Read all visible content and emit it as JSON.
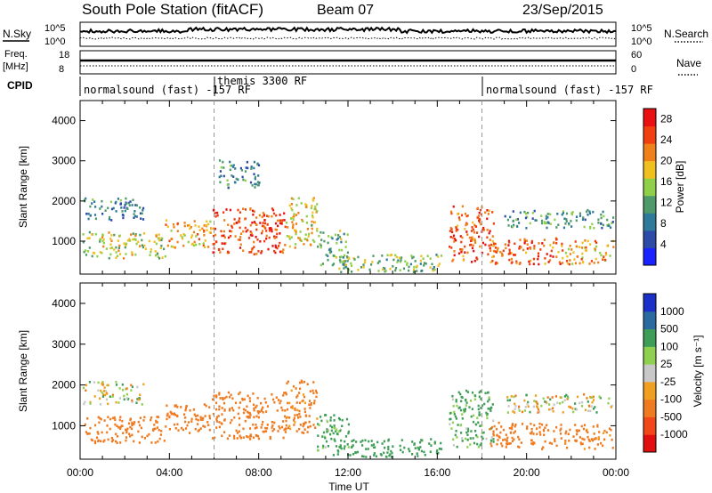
{
  "header": {
    "station": "South Pole Station (fitACF)",
    "beam": "Beam 07",
    "date": "23/Sep/2015"
  },
  "labels": {
    "nsky": "N.Sky",
    "nsearch": "N.Search",
    "freq_1": "Freq.",
    "freq_2": "[MHz]",
    "nave": "Nave",
    "cpid": "CPID",
    "nsky_top": "10^5",
    "nsky_bottom": "10^0",
    "nsearch_top": "10^5",
    "nsearch_bottom": "10^0",
    "freq_top": "18",
    "freq_bottom": "8",
    "nave_top": "60",
    "nave_bottom": "0"
  },
  "cpid_segments": [
    {
      "label": "normalsound (fast) -157 RF",
      "start_hour": 0
    },
    {
      "label": "themis 3300 RF",
      "start_hour": 6
    },
    {
      "label": "normalsound (fast) -157 RF",
      "start_hour": 18
    }
  ],
  "colors": {
    "power_scale": [
      "#1a22ff",
      "#2c4aa8",
      "#2f7a9a",
      "#4e9a6a",
      "#8fcf4a",
      "#f0c020",
      "#f08018",
      "#f04010",
      "#e81010"
    ],
    "velocity_scale": [
      "#e01010",
      "#f04818",
      "#f07a20",
      "#f0a020",
      "#c8c8c8",
      "#8fd050",
      "#3e9e58",
      "#2a6aa0",
      "#1a30c8"
    ]
  },
  "chart_data": [
    {
      "type": "heatmap",
      "name": "power",
      "xlabel": "Time UT",
      "ylabel": "Slant Range [km]",
      "xlim": [
        0,
        24
      ],
      "ylim": [
        180,
        4500
      ],
      "x_ticks": [
        "00:00",
        "04:00",
        "08:00",
        "12:00",
        "16:00",
        "20:00",
        "00:00"
      ],
      "y_ticks": [
        1000,
        2000,
        3000,
        4000
      ],
      "colorbar": {
        "label": "Power [dB]",
        "ticks": [
          4,
          8,
          12,
          16,
          20,
          24,
          28
        ],
        "range": [
          0,
          30
        ]
      },
      "regions": [
        {
          "t0": 0.1,
          "t1": 3.8,
          "r0": 600,
          "r1": 1250,
          "v": 16
        },
        {
          "t0": 3.8,
          "t1": 5.9,
          "r0": 850,
          "r1": 1550,
          "v": 20
        },
        {
          "t0": 0.1,
          "t1": 2.8,
          "r0": 1550,
          "r1": 2100,
          "v": 9
        },
        {
          "t0": 5.9,
          "t1": 9.2,
          "r0": 700,
          "r1": 1850,
          "v": 25
        },
        {
          "t0": 6.2,
          "t1": 8.0,
          "r0": 2350,
          "r1": 3050,
          "v": 9
        },
        {
          "t0": 9.2,
          "t1": 10.6,
          "r0": 850,
          "r1": 2150,
          "v": 18
        },
        {
          "t0": 10.6,
          "t1": 12.0,
          "r0": 400,
          "r1": 1300,
          "v": 12
        },
        {
          "t0": 11.2,
          "t1": 16.2,
          "r0": 250,
          "r1": 700,
          "v": 14
        },
        {
          "t0": 16.5,
          "t1": 18.5,
          "r0": 500,
          "r1": 1900,
          "v": 24
        },
        {
          "t0": 18.3,
          "t1": 21.5,
          "r0": 450,
          "r1": 1100,
          "v": 24
        },
        {
          "t0": 21.5,
          "t1": 23.9,
          "r0": 450,
          "r1": 1050,
          "v": 20
        },
        {
          "t0": 19.0,
          "t1": 23.9,
          "r0": 1350,
          "r1": 1800,
          "v": 11
        }
      ]
    },
    {
      "type": "heatmap",
      "name": "velocity",
      "xlabel": "Time UT",
      "ylabel": "Slant Range [km]",
      "xlim": [
        0,
        24
      ],
      "ylim": [
        180,
        4500
      ],
      "x_ticks": [
        "00:00",
        "04:00",
        "08:00",
        "12:00",
        "16:00",
        "20:00",
        "00:00"
      ],
      "y_ticks": [
        1000,
        2000,
        3000,
        4000
      ],
      "colorbar": {
        "label": "Velocity [m s⁻¹]",
        "ticks": [
          "-1000",
          "-500",
          "-100",
          "-25",
          "25",
          "100",
          "500",
          "1000"
        ]
      },
      "regions": [
        {
          "t0": 0.1,
          "t1": 3.8,
          "r0": 600,
          "r1": 1250,
          "v": -300
        },
        {
          "t0": 3.8,
          "t1": 5.9,
          "r0": 850,
          "r1": 1550,
          "v": -300
        },
        {
          "t0": 0.1,
          "t1": 2.8,
          "r0": 1550,
          "r1": 2100,
          "v": 0
        },
        {
          "t0": 5.9,
          "t1": 9.2,
          "r0": 700,
          "r1": 1850,
          "v": -300
        },
        {
          "t0": 9.2,
          "t1": 10.6,
          "r0": 850,
          "r1": 2150,
          "v": -200
        },
        {
          "t0": 10.6,
          "t1": 12.0,
          "r0": 400,
          "r1": 1300,
          "v": 150
        },
        {
          "t0": 11.2,
          "t1": 16.2,
          "r0": 250,
          "r1": 700,
          "v": 300
        },
        {
          "t0": 16.5,
          "t1": 18.5,
          "r0": 500,
          "r1": 1900,
          "v": 150
        },
        {
          "t0": 18.3,
          "t1": 21.5,
          "r0": 450,
          "r1": 1100,
          "v": -300
        },
        {
          "t0": 21.5,
          "t1": 23.9,
          "r0": 450,
          "r1": 1050,
          "v": -200
        },
        {
          "t0": 19.0,
          "t1": 23.9,
          "r0": 1350,
          "r1": 1800,
          "v": 0
        }
      ]
    }
  ]
}
